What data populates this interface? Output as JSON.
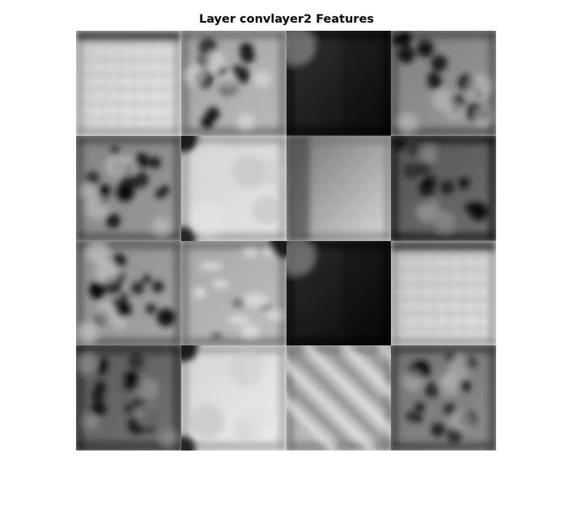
{
  "figure": {
    "title": "Layer convlayer2 Features",
    "layout": {
      "rows": 4,
      "cols": 4
    },
    "colormap": "grayscale"
  },
  "tiles": [
    {
      "name": "feature-1-1",
      "tone": 0.86,
      "pattern": "bright-grid"
    },
    {
      "name": "feature-1-2",
      "tone": 0.68,
      "pattern": "dark-blobs"
    },
    {
      "name": "feature-1-3",
      "tone": 0.3,
      "pattern": "dark-gradient"
    },
    {
      "name": "feature-1-4",
      "tone": 0.55,
      "pattern": "diagonal-blobs"
    },
    {
      "name": "feature-2-1",
      "tone": 0.56,
      "pattern": "dark-blobs"
    },
    {
      "name": "feature-2-2",
      "tone": 0.86,
      "pattern": "bright-smooth"
    },
    {
      "name": "feature-2-3",
      "tone": 0.8,
      "pattern": "light-gradient"
    },
    {
      "name": "feature-2-4",
      "tone": 0.38,
      "pattern": "diagonal-blobs"
    },
    {
      "name": "feature-3-1",
      "tone": 0.6,
      "pattern": "dark-blobs"
    },
    {
      "name": "feature-3-2",
      "tone": 0.7,
      "pattern": "mottled"
    },
    {
      "name": "feature-3-3",
      "tone": 0.28,
      "pattern": "dark-gradient"
    },
    {
      "name": "feature-3-4",
      "tone": 0.84,
      "pattern": "bright-grid"
    },
    {
      "name": "feature-4-1",
      "tone": 0.4,
      "pattern": "dark-blobs"
    },
    {
      "name": "feature-4-2",
      "tone": 0.88,
      "pattern": "bright-smooth"
    },
    {
      "name": "feature-4-3",
      "tone": 0.72,
      "pattern": "diagonal-stripes"
    },
    {
      "name": "feature-4-4",
      "tone": 0.5,
      "pattern": "dark-blobs"
    }
  ]
}
